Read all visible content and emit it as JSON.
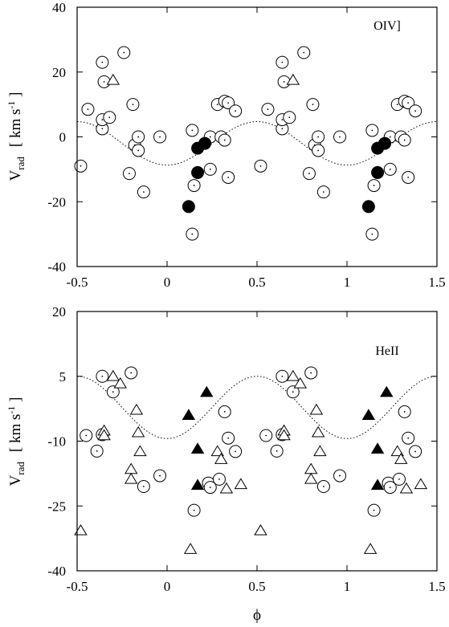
{
  "chart_data": [
    {
      "type": "scatter",
      "panel_label": "OIV]",
      "xlabel": "",
      "ylabel": {
        "main": "V",
        "sub": "rad",
        "unit_open": "[ km s",
        "unit_sup": "-1",
        "unit_close": " ]"
      },
      "xlim": [
        -0.5,
        1.5
      ],
      "ylim": [
        -40,
        40
      ],
      "xticks": [
        {
          "value": -0.5,
          "label": "-0.5"
        },
        {
          "value": 0,
          "label": "0"
        },
        {
          "value": 0.5,
          "label": "0.5"
        },
        {
          "value": 1,
          "label": "1"
        },
        {
          "value": 1.5,
          "label": "1.5"
        }
      ],
      "yticks": [
        {
          "value": -40,
          "label": "-40"
        },
        {
          "value": -20,
          "label": "-20"
        },
        {
          "value": 0,
          "label": "0"
        },
        {
          "value": 20,
          "label": "20"
        },
        {
          "value": 40,
          "label": "40"
        }
      ],
      "curve": {
        "style": "dotted",
        "offset": -2,
        "amplitude": 6.7,
        "phase": 0.0
      },
      "series": [
        {
          "marker": "open-circle-dot",
          "points": [
            [
              -0.48,
              -9
            ],
            [
              -0.44,
              8.5
            ],
            [
              -0.36,
              23
            ],
            [
              -0.36,
              2.5
            ],
            [
              -0.36,
              5.3
            ],
            [
              -0.35,
              17
            ],
            [
              -0.32,
              6
            ],
            [
              -0.24,
              26
            ],
            [
              -0.21,
              -11.3
            ],
            [
              -0.19,
              10
            ],
            [
              -0.18,
              -2.5
            ],
            [
              -0.16,
              0
            ],
            [
              -0.16,
              -4.2
            ],
            [
              -0.13,
              -17
            ],
            [
              -0.04,
              0
            ],
            [
              0.14,
              -30
            ],
            [
              0.14,
              2
            ],
            [
              0.15,
              -15
            ],
            [
              0.24,
              0
            ],
            [
              0.24,
              -10
            ],
            [
              0.28,
              10
            ],
            [
              0.3,
              0
            ],
            [
              0.32,
              11
            ],
            [
              0.32,
              -1
            ],
            [
              0.34,
              -12.5
            ],
            [
              0.34,
              10.5
            ],
            [
              0.38,
              8
            ]
          ]
        },
        {
          "marker": "open-triangle",
          "points": [
            [
              -0.3,
              17.5
            ]
          ]
        },
        {
          "marker": "filled-circle",
          "points": [
            [
              0.12,
              -21.5
            ],
            [
              0.17,
              -11
            ],
            [
              0.17,
              -3.5
            ],
            [
              0.21,
              -2
            ]
          ]
        }
      ]
    },
    {
      "type": "scatter",
      "panel_label": "HeII",
      "xlabel": "ϕ",
      "ylabel": {
        "main": "V",
        "sub": "rad",
        "unit_open": "[ km s",
        "unit_sup": "-1",
        "unit_close": " ]"
      },
      "xlim": [
        -0.5,
        1.5
      ],
      "ylim": [
        -40,
        20
      ],
      "xticks": [
        {
          "value": -0.5,
          "label": "-0.5"
        },
        {
          "value": 0,
          "label": "0"
        },
        {
          "value": 0.5,
          "label": "0.5"
        },
        {
          "value": 1,
          "label": "1"
        },
        {
          "value": 1.5,
          "label": "1.5"
        }
      ],
      "yticks": [
        {
          "value": -40,
          "label": "-40"
        },
        {
          "value": -25,
          "label": "-25"
        },
        {
          "value": -10,
          "label": "-10"
        },
        {
          "value": 5,
          "label": "5"
        },
        {
          "value": 20,
          "label": "20"
        }
      ],
      "curve": {
        "style": "dotted",
        "offset": -2.2,
        "amplitude": 7.2,
        "phase": 0.0
      },
      "series": [
        {
          "marker": "open-circle-dot",
          "points": [
            [
              -0.45,
              -8.7
            ],
            [
              -0.39,
              -12.3
            ],
            [
              -0.36,
              5
            ],
            [
              -0.36,
              -8.5
            ],
            [
              -0.3,
              1.4
            ],
            [
              -0.2,
              5.8
            ],
            [
              -0.13,
              -20.5
            ],
            [
              -0.04,
              -18
            ],
            [
              0.15,
              -26
            ],
            [
              0.23,
              -19.7
            ],
            [
              0.24,
              -20.7
            ],
            [
              0.29,
              -18.8
            ],
            [
              0.32,
              -3.2
            ],
            [
              0.34,
              -9.3
            ],
            [
              0.38,
              -12.4
            ]
          ]
        },
        {
          "marker": "open-triangle",
          "points": [
            [
              -0.48,
              -30.7
            ],
            [
              -0.35,
              -7.6
            ],
            [
              -0.35,
              -8.7
            ],
            [
              -0.3,
              5
            ],
            [
              -0.26,
              3.3
            ],
            [
              -0.2,
              -16.5
            ],
            [
              -0.2,
              -18.8
            ],
            [
              -0.17,
              -2.8
            ],
            [
              -0.16,
              -8
            ],
            [
              -0.15,
              -12.4
            ],
            [
              0.13,
              -35
            ],
            [
              0.28,
              -12.4
            ],
            [
              0.3,
              -14.2
            ],
            [
              0.33,
              -21
            ],
            [
              0.41,
              -20
            ]
          ]
        },
        {
          "marker": "filled-triangle",
          "points": [
            [
              0.12,
              -4
            ],
            [
              0.17,
              -11.8
            ],
            [
              0.17,
              -20.2
            ],
            [
              0.22,
              1.3
            ]
          ]
        }
      ]
    }
  ]
}
